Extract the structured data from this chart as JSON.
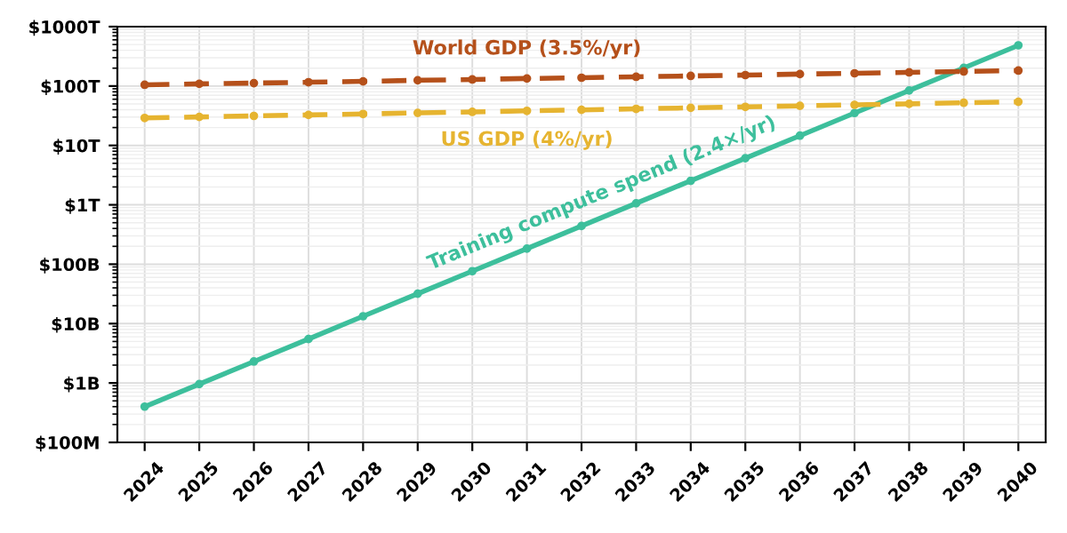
{
  "chart_data": {
    "type": "line",
    "x": [
      2024,
      2025,
      2026,
      2027,
      2028,
      2029,
      2030,
      2031,
      2032,
      2033,
      2034,
      2035,
      2036,
      2037,
      2038,
      2039,
      2040
    ],
    "series": [
      {
        "name": "Training compute spend (2.4×/yr)",
        "color": "#3dbf9c",
        "line_style": "solid",
        "values": [
          400000000.0,
          960000000.0,
          2300000000.0,
          5500000000.0,
          13300000000.0,
          31900000000.0,
          76400000000.0,
          183000000000.0,
          440000000000.0,
          1060000000000.0,
          2540000000000.0,
          6090000000000.0,
          14600000000000.0,
          35100000000000.0,
          84200000000000.0,
          202000000000000.0,
          485000000000000.0
        ]
      },
      {
        "name": "World GDP (3.5%/yr)",
        "color": "#b5501a",
        "line_style": "dashed",
        "values": [
          105000000000000.0,
          109000000000000.0,
          112000000000000.0,
          116000000000000.0,
          120000000000000.0,
          125000000000000.0,
          129000000000000.0,
          134000000000000.0,
          138000000000000.0,
          143000000000000.0,
          148000000000000.0,
          153000000000000.0,
          159000000000000.0,
          164000000000000.0,
          170000000000000.0,
          176000000000000.0,
          182000000000000.0
        ]
      },
      {
        "name": "US GDP (4%/yr)",
        "color": "#e6b430",
        "line_style": "dashed",
        "values": [
          29000000000000.0,
          30200000000000.0,
          31400000000000.0,
          32600000000000.0,
          33900000000000.0,
          35300000000000.0,
          36700000000000.0,
          38200000000000.0,
          39700000000000.0,
          41300000000000.0,
          42900000000000.0,
          44600000000000.0,
          46400000000000.0,
          48300000000000.0,
          50200000000000.0,
          52200000000000.0,
          54300000000000.0
        ]
      }
    ],
    "log": "y",
    "xlim": [
      2023.5,
      2040.5
    ],
    "ylim": [
      100000000.0,
      1000000000000000.0
    ],
    "xticks": [
      2024,
      2025,
      2026,
      2027,
      2028,
      2029,
      2030,
      2031,
      2032,
      2033,
      2034,
      2035,
      2036,
      2037,
      2038,
      2039,
      2040
    ],
    "yticks": [
      {
        "value": 100000000.0,
        "label": "$100M"
      },
      {
        "value": 1000000000.0,
        "label": "$1B"
      },
      {
        "value": 10000000000.0,
        "label": "$10B"
      },
      {
        "value": 100000000000.0,
        "label": "$100B"
      },
      {
        "value": 1000000000000.0,
        "label": "$1T"
      },
      {
        "value": 10000000000000.0,
        "label": "$10T"
      },
      {
        "value": 100000000000000.0,
        "label": "$100T"
      },
      {
        "value": 1000000000000000.0,
        "label": "$1000T"
      }
    ],
    "grid": true,
    "marker": "circle",
    "legend": false
  }
}
